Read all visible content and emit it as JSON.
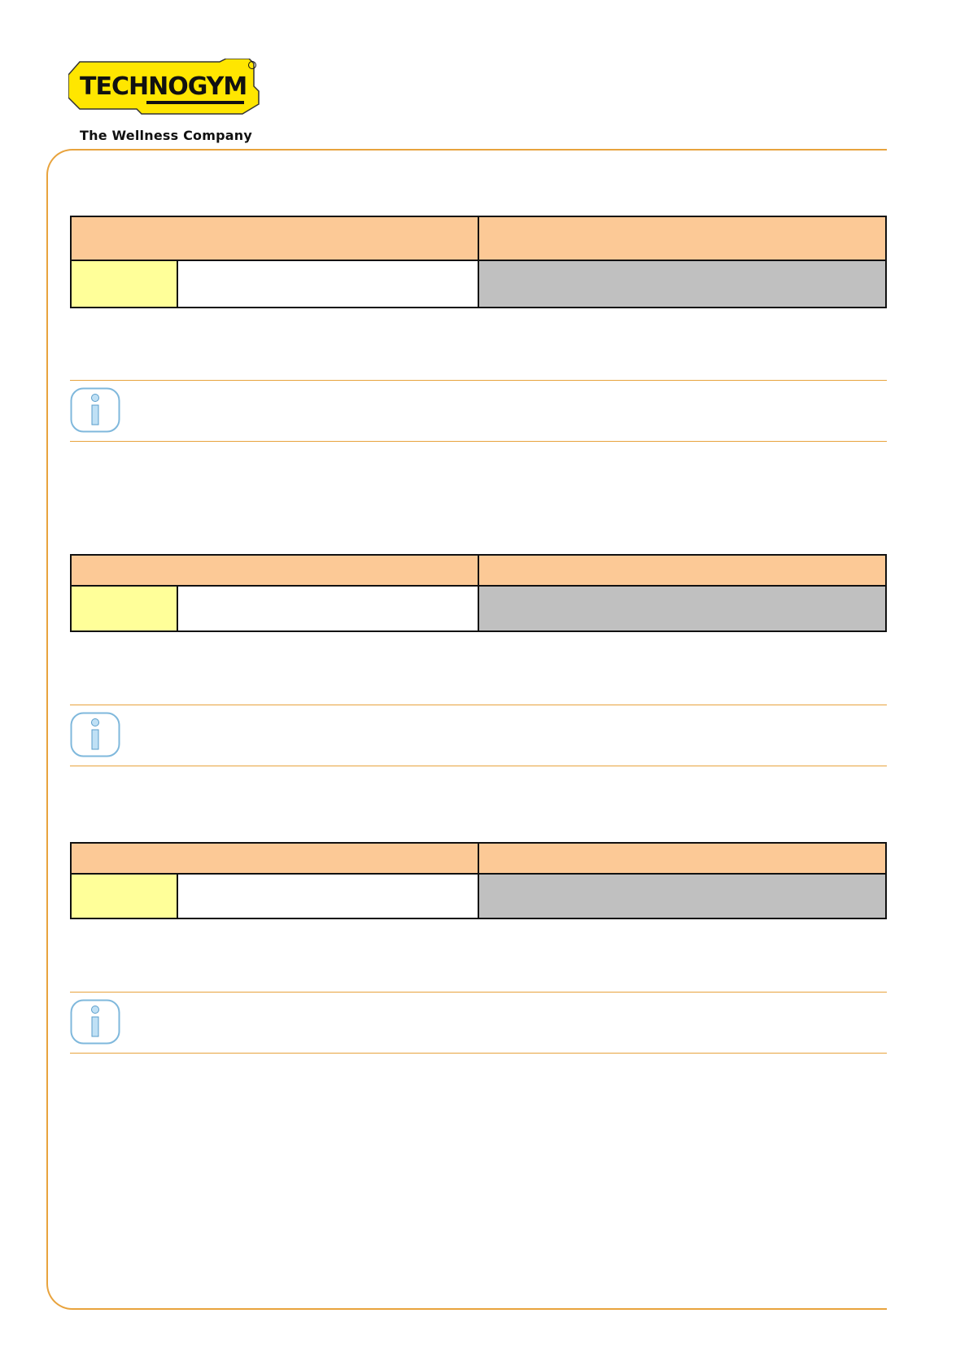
{
  "header": {
    "brand": "TECHNOGYM",
    "tagline": "The Wellness Company"
  },
  "icons": {
    "info": "info-icon"
  },
  "colors": {
    "accent": "#e8a33d",
    "table_header": "#fcc996",
    "yellow_cell": "#ffff99",
    "grey_cell": "#c0c0c0",
    "logo_yellow": "#ffe600"
  }
}
